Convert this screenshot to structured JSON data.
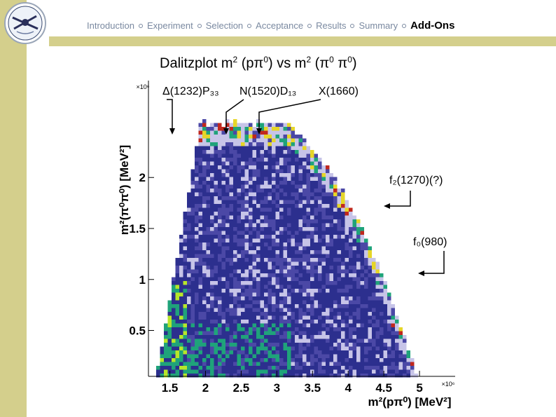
{
  "nav": {
    "items": [
      {
        "label": "Introduction",
        "active": false
      },
      {
        "label": "Experiment",
        "active": false
      },
      {
        "label": "Selection",
        "active": false
      },
      {
        "label": "Acceptance",
        "active": false
      },
      {
        "label": "Results",
        "active": false
      },
      {
        "label": "Summary",
        "active": false
      },
      {
        "label": "Add-Ons",
        "active": true
      }
    ]
  },
  "slide": {
    "title_a": "Dalitzplot m",
    "title_b": "2",
    "title_c": " (pπ",
    "title_d": "0",
    "title_e": ")  vs  m",
    "title_f": "2",
    "title_g": " (π",
    "title_h": "0",
    "title_i": " π",
    "title_j": "0",
    "title_k": ")"
  },
  "chart_data": {
    "type": "heatmap",
    "x_ticks": [
      "1.5",
      "2",
      "2.5",
      "3",
      "3.5",
      "4",
      "4.5",
      "5"
    ],
    "x_tick_values": [
      1.5,
      2.0,
      2.5,
      3.0,
      3.5,
      4.0,
      4.5,
      5.0
    ],
    "y_ticks": [
      "0.5",
      "1",
      "1.5",
      "2"
    ],
    "y_tick_values": [
      0.5,
      1.0,
      1.5,
      2.0
    ],
    "x_multiplier": "×10⁶",
    "y_multiplier": "×10⁶",
    "xlabel": "m²(pπ⁰) [MeV²]",
    "ylabel": "m²(π⁰π⁰) [MeV²]",
    "xlim": [
      1.2,
      5.5
    ],
    "ylim": [
      0.05,
      2.95
    ],
    "annotations": [
      {
        "label": "Δ(1232)P₃₃"
      },
      {
        "label": "N(1520)D₁₃"
      },
      {
        "label": "X(1660)"
      },
      {
        "label": "f₂(1270)(?)"
      },
      {
        "label": "f₀(980)"
      }
    ],
    "colors": {
      "low": "#c7c4e8",
      "mid": "#4b48a6",
      "dense": "#2c2f8e",
      "hot": "#1fa37a",
      "peak": "#b7e62a",
      "edge_yellow": "#e6d628",
      "edge_red": "#c0281e"
    }
  }
}
